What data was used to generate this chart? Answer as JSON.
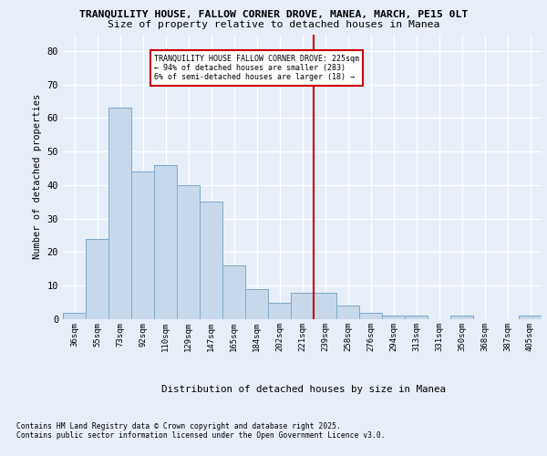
{
  "title1": "TRANQUILITY HOUSE, FALLOW CORNER DROVE, MANEA, MARCH, PE15 0LT",
  "title2": "Size of property relative to detached houses in Manea",
  "xlabel": "Distribution of detached houses by size in Manea",
  "ylabel": "Number of detached properties",
  "categories": [
    "36sqm",
    "55sqm",
    "73sqm",
    "92sqm",
    "110sqm",
    "129sqm",
    "147sqm",
    "165sqm",
    "184sqm",
    "202sqm",
    "221sqm",
    "239sqm",
    "258sqm",
    "276sqm",
    "294sqm",
    "313sqm",
    "331sqm",
    "350sqm",
    "368sqm",
    "387sqm",
    "405sqm"
  ],
  "values": [
    2,
    24,
    63,
    44,
    46,
    40,
    35,
    16,
    9,
    5,
    8,
    8,
    4,
    2,
    1,
    1,
    0,
    1,
    0,
    0,
    1
  ],
  "bar_color": "#c8d8eb",
  "bar_edge_color": "#7aaac8",
  "vline_color": "#cc0000",
  "annotation_title": "TRANQUILITY HOUSE FALLOW CORNER DROVE: 225sqm",
  "annotation_line1": "← 94% of detached houses are smaller (283)",
  "annotation_line2": "6% of semi-detached houses are larger (18) →",
  "annotation_box_color": "#ffffff",
  "annotation_box_edge": "#cc0000",
  "ylim": [
    0,
    85
  ],
  "yticks": [
    0,
    10,
    20,
    30,
    40,
    50,
    60,
    70,
    80
  ],
  "footer1": "Contains HM Land Registry data © Crown copyright and database right 2025.",
  "footer2": "Contains public sector information licensed under the Open Government Licence v3.0.",
  "bg_color": "#e8eef8",
  "plot_bg_color": "#e8eef8"
}
